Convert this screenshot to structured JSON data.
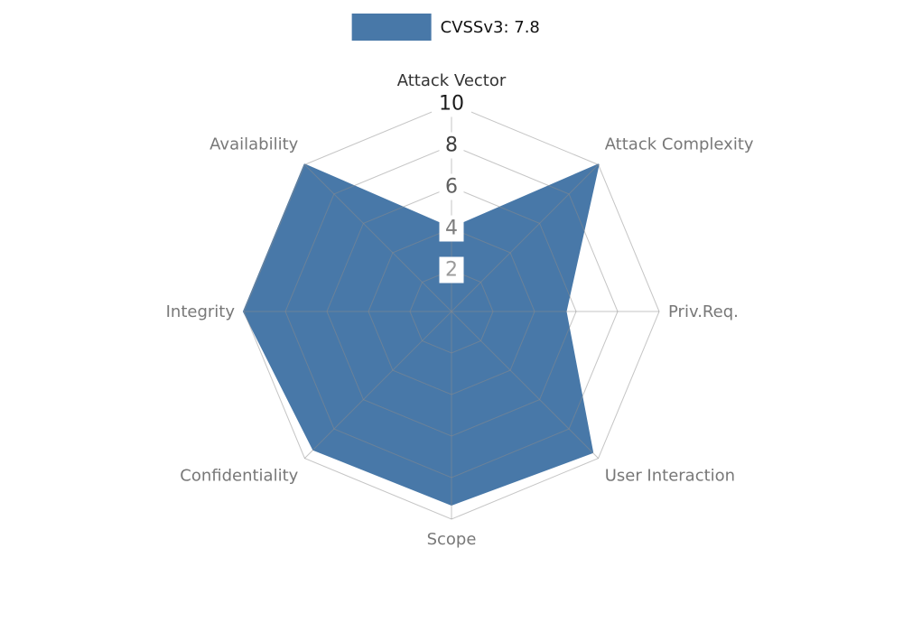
{
  "legend": {
    "label": "CVSSv3: 7.8",
    "swatch_color": "#4878a8"
  },
  "chart_data": {
    "type": "radar",
    "title": "CVSSv3: 7.8",
    "categories": [
      "Attack Vector",
      "Attack Complexity",
      "Priv.Req.",
      "User Interaction",
      "Scope",
      "Confidentiality",
      "Integrity",
      "Availability"
    ],
    "series": [
      {
        "name": "CVSSv3: 7.8",
        "values": [
          4,
          10,
          5.5,
          9.6,
          9.3,
          9.4,
          10,
          10
        ]
      }
    ],
    "rlim": [
      0,
      10
    ],
    "radial_ticks": [
      2,
      4,
      6,
      8,
      10
    ],
    "tick_colors": [
      "#9a9a9a",
      "#7d7d7d",
      "#5f5f5f",
      "#3f3f3f",
      "#1a1a1a"
    ],
    "axis_label_colors": [
      "#333333",
      "#787878",
      "#787878",
      "#787878",
      "#787878",
      "#787878",
      "#787878",
      "#787878"
    ],
    "grid": true,
    "fill_color": "#4878a8",
    "grid_color": "#8c8c8c",
    "legend_position": "top-center"
  }
}
